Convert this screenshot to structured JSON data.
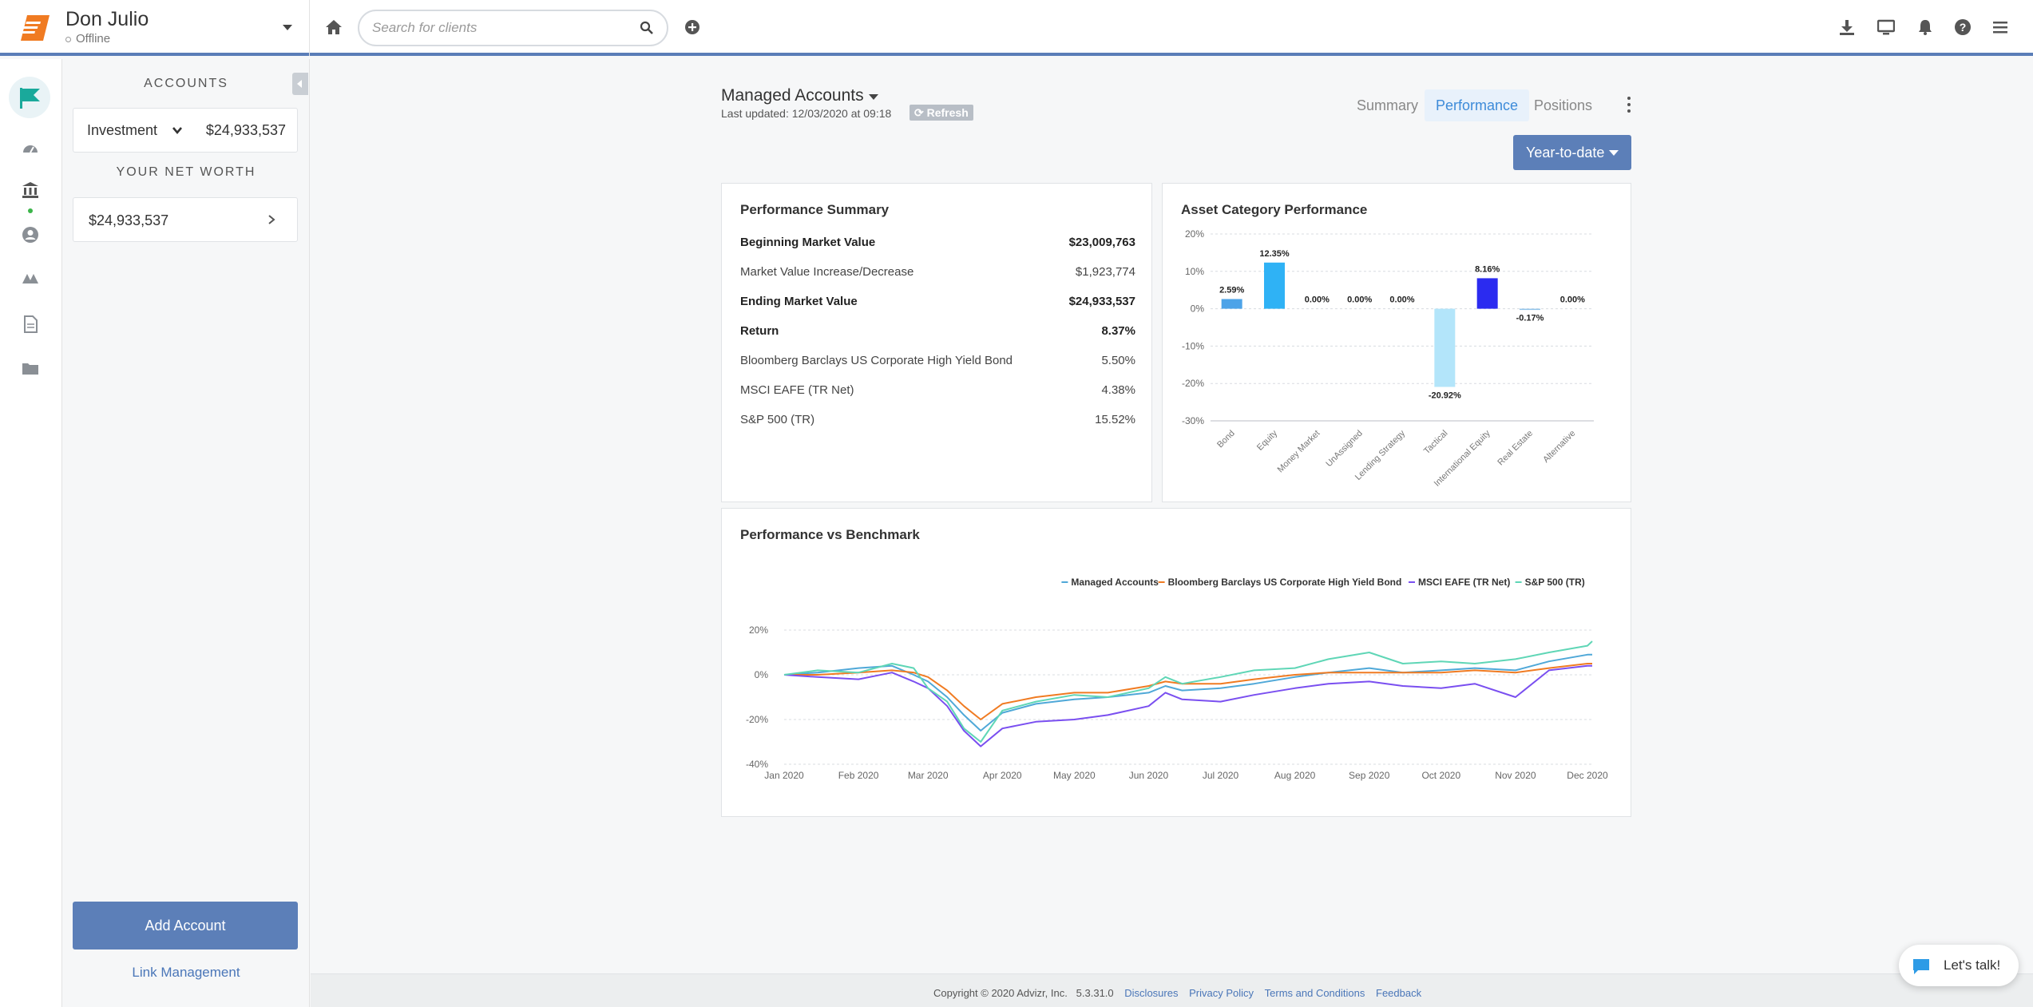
{
  "header": {
    "client_name": "Don Julio",
    "client_status": "Offline",
    "search_placeholder": "Search for clients"
  },
  "accounts_panel": {
    "title": "ACCOUNTS",
    "account_type": "Investment",
    "account_value": "$24,933,537",
    "net_worth_title": "YOUR NET WORTH",
    "net_worth_value": "$24,933,537",
    "add_account_label": "Add Account",
    "link_management_label": "Link Management"
  },
  "main": {
    "group_title": "Managed Accounts",
    "last_updated": "Last updated: 12/03/2020 at 09:18",
    "refresh_label": "⟳ Refresh",
    "tabs": [
      {
        "label": "Summary",
        "active": false
      },
      {
        "label": "Performance",
        "active": true
      },
      {
        "label": "Positions",
        "active": false
      }
    ],
    "period_label": "Year-to-date"
  },
  "performance_summary": {
    "title": "Performance Summary",
    "rows": [
      {
        "label": "Beginning Market Value",
        "value": "$23,009,763",
        "bold": true
      },
      {
        "label": "Market Value Increase/Decrease",
        "value": "$1,923,774",
        "bold": false
      },
      {
        "label": "Ending Market Value",
        "value": "$24,933,537",
        "bold": true
      },
      {
        "label": "Return",
        "value": "8.37%",
        "bold": true
      },
      {
        "label": "Bloomberg Barclays US Corporate High Yield Bond",
        "value": "5.50%",
        "bold": false
      },
      {
        "label": "MSCI EAFE (TR Net)",
        "value": "4.38%",
        "bold": false
      },
      {
        "label": "S&P 500 (TR)",
        "value": "15.52%",
        "bold": false
      }
    ]
  },
  "asset_category": {
    "title": "Asset Category Performance"
  },
  "benchmark": {
    "title": "Performance vs Benchmark"
  },
  "chart_data": [
    {
      "type": "bar",
      "title": "Asset Category Performance",
      "categories": [
        "Bond",
        "Equity",
        "Money Market",
        "UnAssigned",
        "Lending Strategy",
        "Tactical",
        "International Equity",
        "Real Estate",
        "Alternative"
      ],
      "values": [
        2.59,
        12.35,
        0.0,
        0.0,
        0.0,
        -20.92,
        8.16,
        -0.17,
        0.0
      ],
      "data_labels": [
        "2.59%",
        "12.35%",
        "0.00%",
        "0.00%",
        "0.00%",
        "-20.92%",
        "8.16%",
        "-0.17%",
        "0.00%"
      ],
      "colors": [
        "#4da3e8",
        "#2fb2f5",
        "#888888",
        "#888888",
        "#888888",
        "#b3e5fa",
        "#2b2bf0",
        "#8fc3ea",
        "#888888"
      ],
      "yticks": [
        "20%",
        "10%",
        "0%",
        "-10%",
        "-20%",
        "-30%"
      ],
      "ylim": [
        -30,
        20
      ],
      "grid": true
    },
    {
      "type": "line",
      "title": "Performance vs Benchmark",
      "legend_position": "top-right",
      "x_ticks": [
        "Jan 2020",
        "Feb 2020",
        "Mar 2020",
        "Apr 2020",
        "May 2020",
        "Jun 2020",
        "Jul 2020",
        "Aug 2020",
        "Sep 2020",
        "Oct 2020",
        "Nov 2020",
        "Dec 2020"
      ],
      "yticks": [
        "20%",
        "0%",
        "-20%",
        "-40%"
      ],
      "ylim": [
        -40,
        20
      ],
      "grid": true,
      "x": [
        "2020-01-01",
        "2020-01-15",
        "2020-02-01",
        "2020-02-15",
        "2020-02-24",
        "2020-03-01",
        "2020-03-09",
        "2020-03-16",
        "2020-03-23",
        "2020-04-01",
        "2020-04-15",
        "2020-05-01",
        "2020-05-15",
        "2020-06-01",
        "2020-06-08",
        "2020-06-15",
        "2020-07-01",
        "2020-07-15",
        "2020-08-01",
        "2020-08-15",
        "2020-09-01",
        "2020-09-15",
        "2020-10-01",
        "2020-10-15",
        "2020-11-01",
        "2020-11-15",
        "2020-12-01",
        "2020-12-03"
      ],
      "series": [
        {
          "name": "Managed Accounts",
          "color": "#4fa8d8",
          "values": [
            0,
            1,
            3,
            4,
            0,
            -3,
            -10,
            -18,
            -25,
            -17,
            -13,
            -11,
            -10,
            -8,
            -5,
            -7,
            -6,
            -4,
            -1,
            1,
            3,
            1,
            2,
            3,
            2,
            6,
            9,
            9
          ]
        },
        {
          "name": "Bloomberg Barclays US Corporate High Yield Bond",
          "color": "#f07b22",
          "values": [
            0,
            0,
            1,
            2,
            1,
            -1,
            -7,
            -14,
            -20,
            -13,
            -10,
            -8,
            -8,
            -5,
            -3,
            -4,
            -4,
            -2,
            0,
            1,
            1,
            1,
            1,
            2,
            1,
            3,
            5,
            5
          ]
        },
        {
          "name": "MSCI EAFE (TR Net)",
          "color": "#7a4ff0",
          "values": [
            0,
            -1,
            -2,
            1,
            -3,
            -6,
            -14,
            -25,
            -32,
            -24,
            -21,
            -20,
            -18,
            -14,
            -8,
            -11,
            -12,
            -9,
            -6,
            -4,
            -3,
            -5,
            -6,
            -4,
            -10,
            2,
            4,
            4
          ]
        },
        {
          "name": "S&P 500 (TR)",
          "color": "#5fd6b6",
          "values": [
            0,
            2,
            1,
            5,
            3,
            -6,
            -12,
            -24,
            -30,
            -16,
            -12,
            -9,
            -10,
            -6,
            -1,
            -4,
            -1,
            2,
            3,
            7,
            10,
            5,
            6,
            5,
            7,
            10,
            13,
            15
          ]
        }
      ]
    }
  ]
}
